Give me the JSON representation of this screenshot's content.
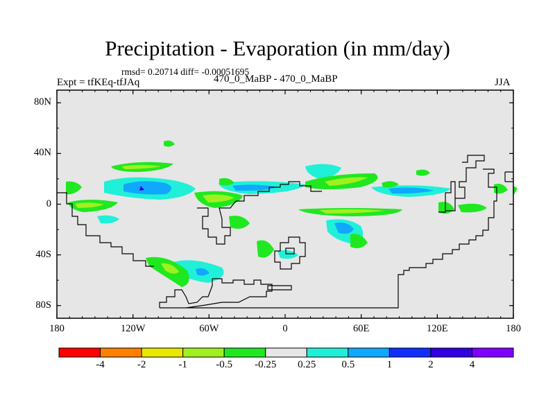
{
  "title": "Precipitation - Evaporation (in mm/day)",
  "stats_text": "rmsd= 0.20714  diff= -0.00051695",
  "left_label": "Expt = tfKEq-tfJAq",
  "center_label": "470_0_MaBP - 470_0_MaBP",
  "right_label": "JJA",
  "lat_ticks": [
    {
      "value": 80,
      "label": "80N"
    },
    {
      "value": 40,
      "label": "40N"
    },
    {
      "value": 0,
      "label": "0"
    },
    {
      "value": -40,
      "label": "40S"
    },
    {
      "value": -80,
      "label": "80S"
    }
  ],
  "lon_ticks": [
    {
      "value": -180,
      "label": "180"
    },
    {
      "value": -120,
      "label": "120W"
    },
    {
      "value": -60,
      "label": "60W"
    },
    {
      "value": 0,
      "label": "0"
    },
    {
      "value": 60,
      "label": "60E"
    },
    {
      "value": 120,
      "label": "120E"
    },
    {
      "value": 180,
      "label": "180"
    }
  ],
  "colorbar": {
    "labels": [
      "-4",
      "-2",
      "-1",
      "-0.5",
      "-0.25",
      "0.25",
      "0.5",
      "1",
      "2",
      "4"
    ],
    "colors": [
      "#ff0000",
      "#ff8000",
      "#e8e800",
      "#a0f020",
      "#20e820",
      "#e6e6e6",
      "#20f0d8",
      "#10a8ff",
      "#1030ff",
      "#3000e0",
      "#8000ff"
    ]
  },
  "map": {
    "background": "#e6e6e6",
    "lon_range": [
      -180,
      180
    ],
    "lat_range": [
      -90,
      90
    ]
  }
}
